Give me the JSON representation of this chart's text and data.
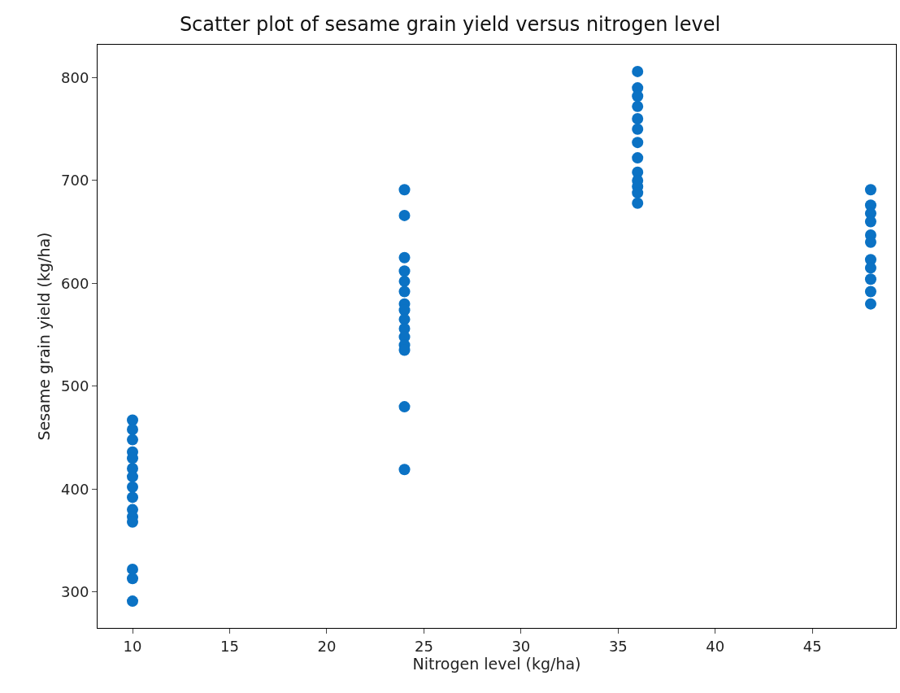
{
  "chart_data": {
    "type": "scatter",
    "title": "Scatter plot of sesame grain yield versus nitrogen level",
    "xlabel": "Nitrogen level (kg/ha)",
    "ylabel": "Sesame grain yield (kg/ha)",
    "series": [
      {
        "color": "#0b72c4",
        "x": [
          10,
          10,
          10,
          10,
          10,
          10,
          10,
          10,
          10,
          10,
          10,
          10,
          10,
          10,
          10,
          24,
          24,
          24,
          24,
          24,
          24,
          24,
          24,
          24,
          24,
          24,
          24,
          24,
          24,
          24,
          36,
          36,
          36,
          36,
          36,
          36,
          36,
          36,
          36,
          36,
          36,
          36,
          36,
          48,
          48,
          48,
          48,
          48,
          48,
          48,
          48,
          48,
          48,
          48
        ],
        "values": [
          467,
          458,
          448,
          436,
          430,
          420,
          412,
          402,
          392,
          380,
          373,
          368,
          322,
          313,
          291,
          691,
          666,
          625,
          612,
          602,
          592,
          580,
          574,
          565,
          556,
          548,
          540,
          535,
          480,
          419,
          806,
          790,
          782,
          772,
          760,
          750,
          737,
          722,
          708,
          700,
          694,
          688,
          678,
          691,
          676,
          668,
          660,
          647,
          640,
          623,
          615,
          604,
          592,
          580
        ]
      }
    ],
    "xlim": [
      8.2,
      49.3
    ],
    "xticks": [
      10,
      15,
      20,
      25,
      30,
      35,
      40,
      45
    ],
    "ylim": [
      265,
      832
    ],
    "yticks": [
      300,
      400,
      500,
      600,
      700,
      800
    ],
    "marker": "circle"
  }
}
